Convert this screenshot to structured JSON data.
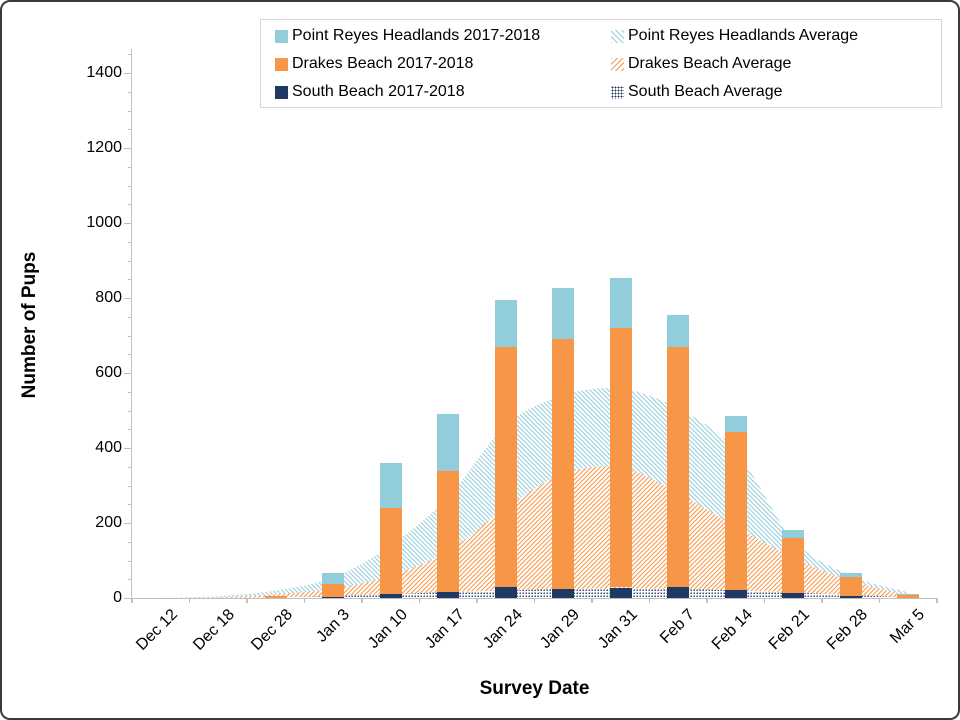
{
  "chart": {
    "y_axis": {
      "title": "Number of Pups",
      "tick_labels": [
        "0",
        "200",
        "400",
        "600",
        "800",
        "1000",
        "1200",
        "1400"
      ],
      "major_interval": 200,
      "minor_interval": 50,
      "axis_color": "#bfbfbf"
    },
    "x_axis": {
      "title": "Survey Date",
      "categories": [
        "Dec 12",
        "Dec 18",
        "Dec 28",
        "Jan 3",
        "Jan 10",
        "Jan 17",
        "Jan 24",
        "Jan 29",
        "Jan 31",
        "Feb 7",
        "Feb 14",
        "Feb 21",
        "Feb 28",
        "Mar 5"
      ]
    },
    "legend": [
      {
        "label": "Point Reyes Headlands 2017-2018",
        "swatch": "solid",
        "color": "#92CDDC"
      },
      {
        "label": "Point Reyes Headlands Average",
        "swatch": "hatch-down",
        "color": "#92CDDC"
      },
      {
        "label": "Drakes Beach 2017-2018",
        "swatch": "solid",
        "color": "#F79646"
      },
      {
        "label": "Drakes Beach Average",
        "swatch": "hatch-up",
        "color": "#F79646"
      },
      {
        "label": "South Beach 2017-2018",
        "swatch": "solid",
        "color": "#1F3864"
      },
      {
        "label": "South Beach Average",
        "swatch": "dots",
        "color": "#1F3864"
      }
    ]
  },
  "chart_data": {
    "type": "bar",
    "subtype": "stacked bars (2017-2018 season) overlaid on patterned area series (multi-year averages)",
    "title": "",
    "xlabel": "Survey Date",
    "ylabel": "Number of Pups",
    "ylim": [
      0,
      1464
    ],
    "grid": false,
    "legend_position": "top",
    "categories": [
      "Dec 12",
      "Dec 18",
      "Dec 28",
      "Jan 3",
      "Jan 10",
      "Jan 17",
      "Jan 24",
      "Jan 29",
      "Jan 31",
      "Feb 7",
      "Feb 14",
      "Feb 21",
      "Feb 28",
      "Mar 5"
    ],
    "series": [
      {
        "name": "South Beach 2017-2018",
        "render": "bar",
        "stack_order": 1,
        "color": "#1F3864",
        "values": [
          0,
          0,
          0,
          2,
          12,
          15,
          30,
          25,
          28,
          30,
          22,
          13,
          5,
          0
        ]
      },
      {
        "name": "Drakes Beach 2017-2018",
        "render": "bar",
        "stack_order": 2,
        "color": "#F79646",
        "values": [
          0,
          0,
          5,
          36,
          228,
          323,
          640,
          667,
          691,
          639,
          422,
          146,
          51,
          8
        ]
      },
      {
        "name": "Point Reyes Headlands 2017-2018",
        "render": "bar",
        "stack_order": 3,
        "color": "#92CDDC",
        "values": [
          0,
          0,
          0,
          29,
          120,
          153,
          125,
          136,
          134,
          85,
          42,
          22,
          12,
          2
        ]
      },
      {
        "name": "Point Reyes Headlands Average",
        "render": "area",
        "pattern": "hatch-down",
        "color": "#92CDDC",
        "values": [
          0,
          5,
          20,
          55,
          140,
          270,
          460,
          540,
          558,
          505,
          393,
          155,
          60,
          15
        ]
      },
      {
        "name": "Drakes Beach Average",
        "render": "area",
        "pattern": "hatch-up",
        "color": "#F79646",
        "values": [
          0,
          2,
          10,
          25,
          60,
          125,
          240,
          330,
          348,
          280,
          190,
          108,
          45,
          8
        ]
      },
      {
        "name": "South Beach Average",
        "render": "area",
        "pattern": "dots",
        "color": "#1F3864",
        "values": [
          0,
          0,
          2,
          5,
          10,
          16,
          20,
          24,
          25,
          24,
          20,
          15,
          8,
          2
        ]
      }
    ],
    "stacked_bar_totals": [
      0,
      0,
      5,
      67,
      360,
      491,
      795,
      828,
      853,
      754,
      486,
      181,
      68,
      10
    ]
  }
}
